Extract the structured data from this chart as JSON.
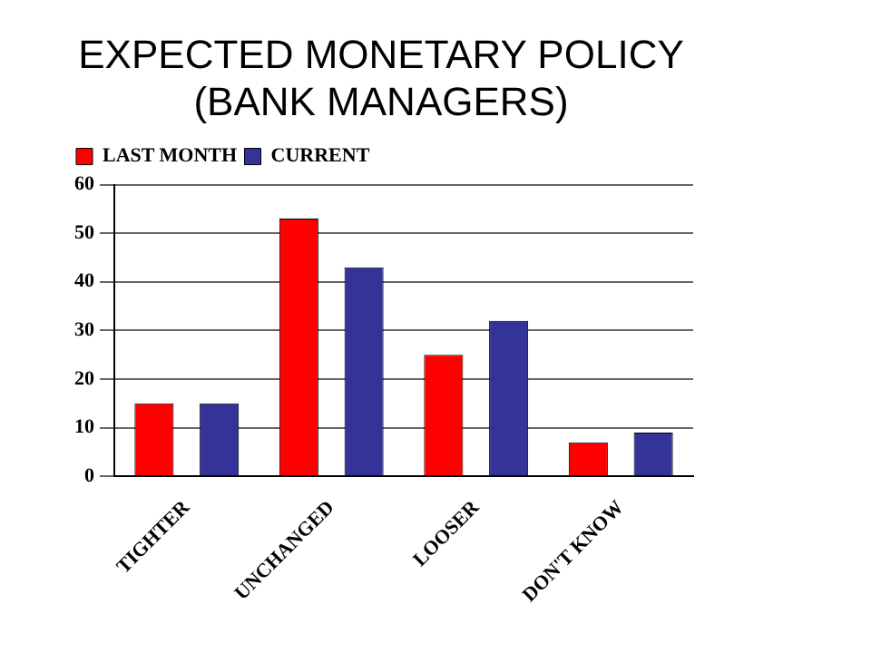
{
  "chart_data": {
    "type": "bar",
    "title": "EXPECTED MONETARY POLICY\n(BANK MANAGERS)",
    "categories": [
      "TIGHTER",
      "UNCHANGED",
      "LOOSER",
      "DON'T KNOW"
    ],
    "series": [
      {
        "name": "LAST MONTH",
        "color": "#ff0000",
        "values": [
          15,
          53,
          25,
          7
        ]
      },
      {
        "name": "CURRENT",
        "color": "#333399",
        "values": [
          15,
          43,
          32,
          9
        ]
      }
    ],
    "ylim": [
      0,
      60
    ],
    "yticks": [
      0,
      10,
      20,
      30,
      40,
      50,
      60
    ],
    "grid": "y",
    "legend": "top left"
  }
}
